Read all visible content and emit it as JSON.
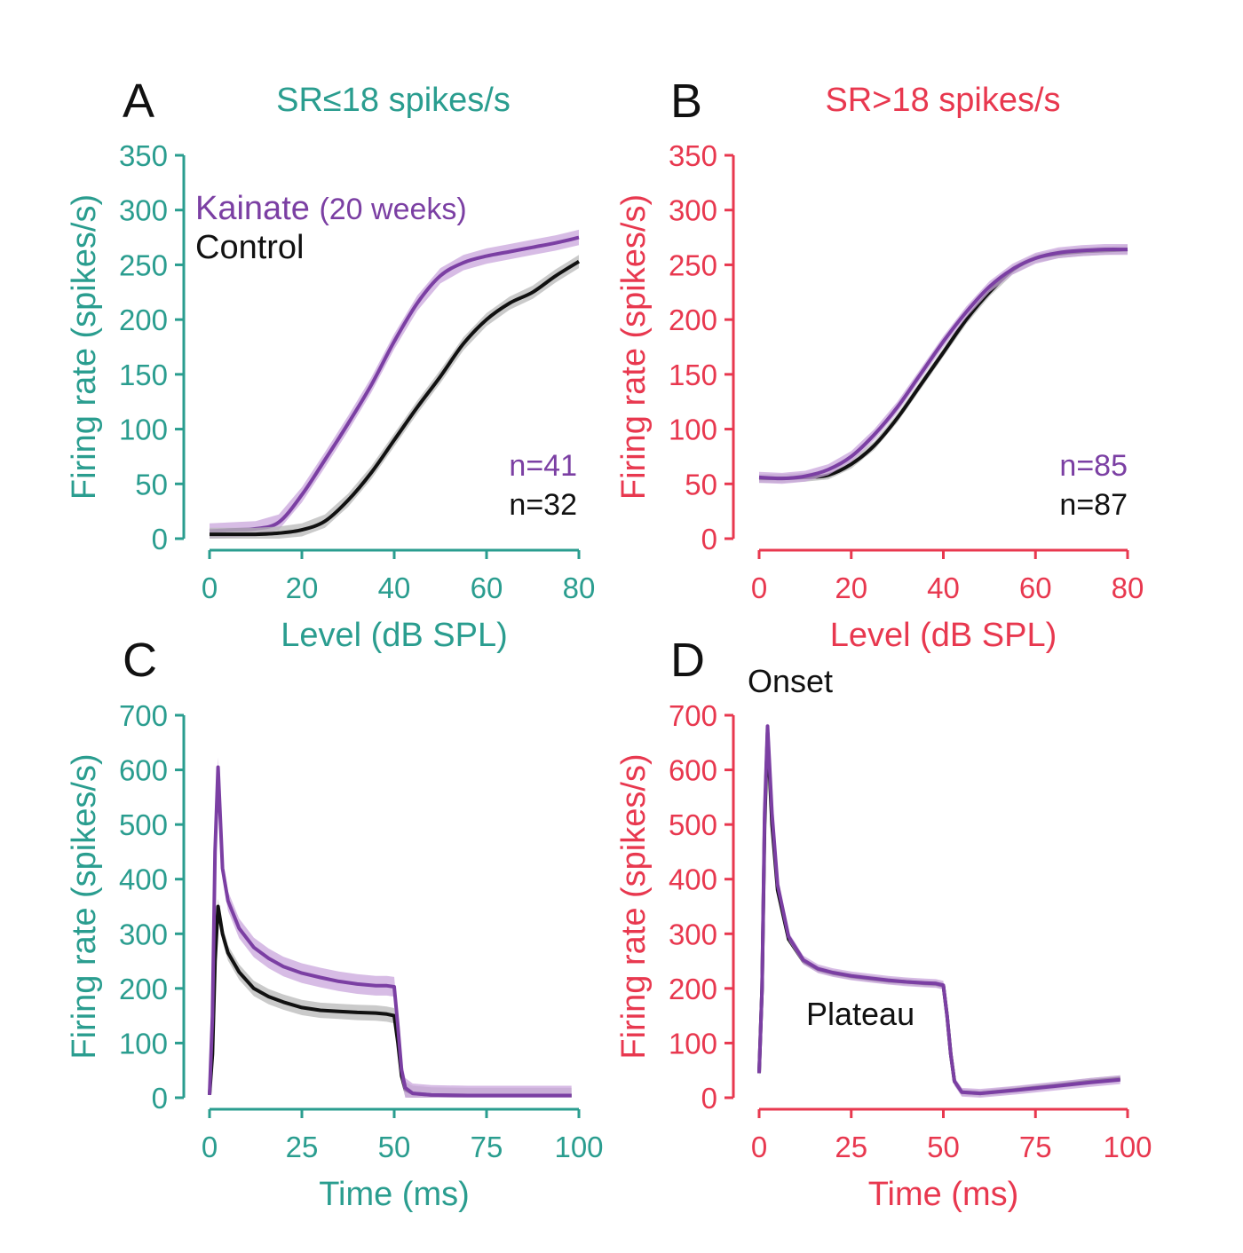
{
  "colors": {
    "teal": "#2a9d8f",
    "red": "#e8384f",
    "purple": "#7b3fa3",
    "purple_band": "#c9a6dc",
    "black": "#111111",
    "grey_band": "#b8b8b8"
  },
  "chart_data": [
    {
      "id": "A",
      "panel_label": "A",
      "type": "line",
      "title": "SR≤18 spikes/s",
      "xlabel": "Level (dB SPL)",
      "ylabel": "Firing rate (spikes/s)",
      "xlim": [
        0,
        80
      ],
      "ylim": [
        0,
        350
      ],
      "xticks": [
        0,
        20,
        40,
        60,
        80
      ],
      "yticks": [
        0,
        50,
        100,
        150,
        200,
        250,
        300,
        350
      ],
      "axis_color": "#2a9d8f",
      "legend": [
        {
          "label": "Kainate",
          "sub": "(20 weeks)",
          "color": "#7b3fa3"
        },
        {
          "label": "Control",
          "color": "#111111"
        }
      ],
      "n_labels": [
        {
          "text": "n=41",
          "color": "#7b3fa3"
        },
        {
          "text": "n=32",
          "color": "#111111"
        }
      ],
      "series": [
        {
          "name": "Kainate",
          "color": "#7b3fa3",
          "band": "#c9a6dc",
          "err": 7,
          "x": [
            0,
            5,
            10,
            15,
            20,
            25,
            30,
            35,
            40,
            45,
            50,
            55,
            60,
            65,
            70,
            75,
            80
          ],
          "y": [
            7,
            8,
            9,
            15,
            40,
            72,
            105,
            140,
            180,
            215,
            240,
            252,
            258,
            262,
            266,
            270,
            275
          ]
        },
        {
          "name": "Control",
          "color": "#111111",
          "band": "#b8b8b8",
          "err": 6,
          "x": [
            0,
            5,
            10,
            15,
            20,
            25,
            30,
            35,
            40,
            45,
            50,
            55,
            60,
            65,
            70,
            75,
            80
          ],
          "y": [
            4,
            4,
            4,
            5,
            8,
            16,
            35,
            60,
            90,
            120,
            148,
            178,
            200,
            215,
            225,
            240,
            253
          ]
        }
      ]
    },
    {
      "id": "B",
      "panel_label": "B",
      "type": "line",
      "title": "SR>18 spikes/s",
      "xlabel": "Level (dB SPL)",
      "ylabel": "Firing rate (spikes/s)",
      "xlim": [
        0,
        80
      ],
      "ylim": [
        0,
        350
      ],
      "xticks": [
        0,
        20,
        40,
        60,
        80
      ],
      "yticks": [
        0,
        50,
        100,
        150,
        200,
        250,
        300,
        350
      ],
      "axis_color": "#e8384f",
      "n_labels": [
        {
          "text": "n=85",
          "color": "#7b3fa3"
        },
        {
          "text": "n=87",
          "color": "#111111"
        }
      ],
      "series": [
        {
          "name": "Control",
          "color": "#111111",
          "band": "#b8b8b8",
          "err": 4,
          "x": [
            0,
            5,
            10,
            15,
            20,
            25,
            30,
            35,
            40,
            45,
            50,
            55,
            60,
            65,
            70,
            75,
            80
          ],
          "y": [
            55,
            55,
            56,
            58,
            68,
            85,
            110,
            140,
            170,
            200,
            225,
            245,
            256,
            260,
            262,
            263,
            264
          ]
        },
        {
          "name": "Kainate",
          "color": "#7b3fa3",
          "band": "#c9a6dc",
          "err": 5,
          "x": [
            0,
            5,
            10,
            15,
            20,
            25,
            30,
            35,
            40,
            45,
            50,
            55,
            60,
            65,
            70,
            75,
            80
          ],
          "y": [
            56,
            55,
            57,
            63,
            75,
            95,
            120,
            150,
            180,
            207,
            230,
            246,
            256,
            261,
            263,
            264,
            264
          ]
        }
      ]
    },
    {
      "id": "C",
      "panel_label": "C",
      "type": "line",
      "xlabel": "Time (ms)",
      "ylabel": "Firing rate (spikes/s)",
      "xlim": [
        0,
        100
      ],
      "ylim": [
        0,
        700
      ],
      "xticks": [
        0,
        25,
        50,
        75,
        100
      ],
      "yticks": [
        0,
        100,
        200,
        300,
        400,
        500,
        600,
        700
      ],
      "axis_color": "#2a9d8f",
      "series": [
        {
          "name": "Control",
          "color": "#111111",
          "band": "#b8b8b8",
          "err": 14,
          "x": [
            0,
            0.8,
            1.5,
            2.3,
            3.5,
            5,
            8,
            12,
            16,
            20,
            25,
            30,
            35,
            40,
            45,
            48,
            50,
            51,
            52,
            53,
            55,
            60,
            70,
            80,
            90,
            98
          ],
          "y": [
            5,
            80,
            250,
            350,
            300,
            265,
            230,
            200,
            185,
            175,
            165,
            160,
            158,
            156,
            155,
            153,
            150,
            100,
            40,
            15,
            8,
            5,
            4,
            4,
            4,
            4
          ]
        },
        {
          "name": "Kainate",
          "color": "#7b3fa3",
          "band": "#c9a6dc",
          "err": 18,
          "x": [
            0,
            0.8,
            1.5,
            2.3,
            3.5,
            5,
            8,
            12,
            16,
            20,
            25,
            30,
            35,
            40,
            45,
            48,
            50,
            51,
            52,
            53,
            55,
            60,
            70,
            80,
            90,
            98
          ],
          "y": [
            5,
            150,
            450,
            605,
            420,
            360,
            310,
            275,
            255,
            240,
            228,
            220,
            213,
            208,
            205,
            205,
            203,
            130,
            50,
            18,
            8,
            5,
            4,
            4,
            4,
            4
          ]
        }
      ]
    },
    {
      "id": "D",
      "panel_label": "D",
      "type": "line",
      "xlabel": "Time (ms)",
      "ylabel": "Firing rate (spikes/s)",
      "xlim": [
        0,
        100
      ],
      "ylim": [
        0,
        700
      ],
      "xticks": [
        0,
        25,
        50,
        75,
        100
      ],
      "yticks": [
        0,
        100,
        200,
        300,
        400,
        500,
        600,
        700
      ],
      "axis_color": "#e8384f",
      "annotations": [
        "Onset",
        "Plateau"
      ],
      "series": [
        {
          "name": "Control",
          "color": "#111111",
          "band": "#b8b8b8",
          "err": 6,
          "x": [
            0,
            0.8,
            1.5,
            2.3,
            3.5,
            5,
            8,
            12,
            16,
            20,
            25,
            30,
            35,
            40,
            45,
            48,
            50,
            51,
            52,
            53,
            55,
            60,
            70,
            80,
            90,
            98
          ],
          "y": [
            45,
            200,
            500,
            670,
            500,
            380,
            290,
            250,
            235,
            228,
            222,
            218,
            214,
            212,
            209,
            208,
            205,
            150,
            80,
            30,
            10,
            8,
            15,
            22,
            30,
            35
          ]
        },
        {
          "name": "Kainate",
          "color": "#7b3fa3",
          "band": "#c9a6dc",
          "err": 8,
          "x": [
            0,
            0.8,
            1.5,
            2.3,
            3.5,
            5,
            8,
            12,
            16,
            20,
            25,
            30,
            35,
            40,
            45,
            48,
            50,
            51,
            52,
            53,
            55,
            60,
            70,
            80,
            90,
            98
          ],
          "y": [
            45,
            200,
            520,
            680,
            520,
            390,
            295,
            252,
            236,
            229,
            223,
            219,
            215,
            212,
            210,
            209,
            206,
            150,
            80,
            30,
            10,
            8,
            14,
            21,
            28,
            33
          ]
        }
      ]
    }
  ]
}
